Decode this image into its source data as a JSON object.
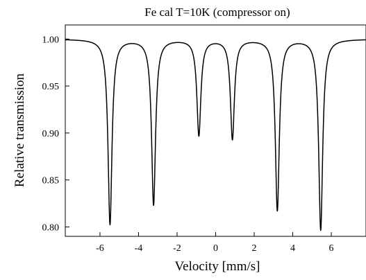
{
  "chart_data": {
    "type": "line",
    "title": "Fe cal T=10K (compressor on)",
    "xlabel": "Velocity  [mm/s]",
    "ylabel": "Relative transmission",
    "xlim": [
      -7.8,
      7.8
    ],
    "ylim": [
      0.79,
      1.015
    ],
    "xticks": [
      -6,
      -4,
      -2,
      0,
      2,
      4,
      6
    ],
    "xtick_labels": [
      "-6",
      "-4",
      "-2",
      "0",
      "2",
      "4",
      "6"
    ],
    "yticks": [
      0.8,
      0.85,
      0.9,
      0.95,
      1.0
    ],
    "ytick_labels": [
      "0.80",
      "0.85",
      "0.90",
      "0.95",
      "1.00"
    ],
    "grid": false,
    "legend": "none",
    "baseline": 1.0,
    "peaks": [
      {
        "center": -5.48,
        "minimum": 0.803
      },
      {
        "center": -3.22,
        "minimum": 0.824
      },
      {
        "center": -0.87,
        "minimum": 0.898
      },
      {
        "center": 0.87,
        "minimum": 0.894
      },
      {
        "center": 3.2,
        "minimum": 0.818
      },
      {
        "center": 5.45,
        "minimum": 0.797
      }
    ],
    "line_color": "#000000"
  }
}
